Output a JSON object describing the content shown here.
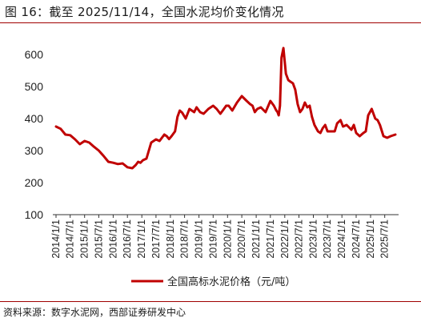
{
  "title": "图 16：截至 2025/11/14，全国水泥均价变化情况",
  "source": "资料来源：数字水泥网，西部证券研发中心",
  "colors": {
    "series": "#c00000",
    "rule": "#a00000"
  },
  "chart_data": {
    "type": "line",
    "title": "",
    "xlabel": "",
    "ylabel": "",
    "ylim": [
      100,
      650
    ],
    "yticks": [
      100,
      200,
      300,
      400,
      500,
      600
    ],
    "xlim": [
      "2014-01-01",
      "2025-11-14"
    ],
    "xticks": [
      "2014/1/1",
      "2014/7/1",
      "2015/1/1",
      "2015/7/1",
      "2016/1/1",
      "2016/7/1",
      "2017/1/1",
      "2017/7/1",
      "2018/1/1",
      "2018/7/1",
      "2019/1/1",
      "2019/7/1",
      "2020/1/1",
      "2020/7/1",
      "2021/1/1",
      "2021/7/1",
      "2022/1/1",
      "2022/7/1",
      "2023/1/1",
      "2023/7/1",
      "2024/1/1",
      "2024/7/1",
      "2025/1/1",
      "2025/7/1"
    ],
    "legend_position": "bottom",
    "grid": false,
    "series": [
      {
        "name": "全国高标水泥价格（元/吨）",
        "x": [
          "2014-01-01",
          "2014-03-01",
          "2014-05-01",
          "2014-07-01",
          "2014-09-01",
          "2014-11-01",
          "2015-01-01",
          "2015-03-01",
          "2015-05-01",
          "2015-07-01",
          "2015-09-01",
          "2015-11-01",
          "2016-01-01",
          "2016-03-01",
          "2016-05-01",
          "2016-07-01",
          "2016-09-01",
          "2016-10-15",
          "2016-11-15",
          "2016-12-15",
          "2017-01-15",
          "2017-03-01",
          "2017-05-01",
          "2017-07-01",
          "2017-08-15",
          "2017-09-15",
          "2017-10-15",
          "2017-11-15",
          "2017-12-15",
          "2018-01-15",
          "2018-03-01",
          "2018-04-01",
          "2018-05-01",
          "2018-06-01",
          "2018-07-15",
          "2018-09-01",
          "2018-10-01",
          "2018-11-01",
          "2018-12-01",
          "2019-01-15",
          "2019-03-01",
          "2019-05-01",
          "2019-07-01",
          "2019-08-15",
          "2019-10-01",
          "2019-11-01",
          "2019-12-15",
          "2020-01-15",
          "2020-03-01",
          "2020-05-01",
          "2020-07-01",
          "2020-09-01",
          "2020-10-15",
          "2020-11-15",
          "2020-12-15",
          "2021-01-15",
          "2021-03-01",
          "2021-05-01",
          "2021-07-01",
          "2021-08-15",
          "2021-09-15",
          "2021-10-01",
          "2021-10-15",
          "2021-11-01",
          "2021-11-20",
          "2021-12-15",
          "2022-01-15",
          "2022-02-15",
          "2022-03-15",
          "2022-04-15",
          "2022-05-15",
          "2022-06-15",
          "2022-07-15",
          "2022-08-15",
          "2022-09-15",
          "2022-10-15",
          "2022-11-15",
          "2022-12-15",
          "2023-01-15",
          "2023-03-01",
          "2023-04-01",
          "2023-05-01",
          "2023-06-01",
          "2023-07-01",
          "2023-08-15",
          "2023-10-01",
          "2023-11-01",
          "2023-12-15",
          "2024-01-15",
          "2024-03-01",
          "2024-05-01",
          "2024-06-01",
          "2024-07-01",
          "2024-08-15",
          "2024-10-01",
          "2024-11-01",
          "2024-12-01",
          "2025-01-15",
          "2025-03-01",
          "2025-04-01",
          "2025-05-01",
          "2025-06-15",
          "2025-08-01",
          "2025-09-15",
          "2025-11-14"
        ],
        "y": [
          375,
          368,
          350,
          348,
          335,
          320,
          330,
          325,
          312,
          300,
          283,
          265,
          262,
          258,
          260,
          248,
          245,
          255,
          265,
          262,
          270,
          275,
          325,
          335,
          330,
          340,
          350,
          345,
          336,
          345,
          360,
          405,
          425,
          418,
          400,
          430,
          425,
          420,
          435,
          420,
          415,
          430,
          440,
          430,
          415,
          425,
          440,
          440,
          425,
          450,
          470,
          455,
          445,
          440,
          420,
          430,
          435,
          420,
          455,
          440,
          425,
          420,
          410,
          440,
          590,
          620,
          540,
          520,
          515,
          510,
          490,
          445,
          420,
          430,
          450,
          435,
          440,
          405,
          380,
          360,
          355,
          370,
          380,
          360,
          360,
          360,
          385,
          395,
          375,
          380,
          365,
          380,
          355,
          345,
          355,
          360,
          410,
          430,
          400,
          395,
          380,
          345,
          340,
          345,
          350
        ]
      }
    ]
  }
}
